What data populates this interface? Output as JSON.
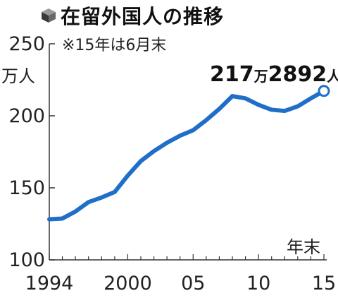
{
  "header": {
    "icon": "cube-icon",
    "title": "在留外国人の推移",
    "note": "※15年は6月末"
  },
  "chart_data": {
    "type": "line",
    "title": "在留外国人の推移",
    "ylabel": "万人",
    "xlabel": "年末",
    "ylim": [
      100,
      250
    ],
    "xlim": [
      1994,
      2015
    ],
    "yticks": [
      "250",
      "200",
      "150",
      "100"
    ],
    "ytick_values": [
      250,
      200,
      150,
      100
    ],
    "xticks": [
      "1994",
      "2000",
      "05",
      "10",
      "15"
    ],
    "xtick_values": [
      1994,
      2000,
      2005,
      2010,
      2015
    ],
    "series": [
      {
        "color": "#1f6fc8",
        "x": [
          1994,
          1995,
          1996,
          1997,
          1998,
          1999,
          2000,
          2001,
          2002,
          2003,
          2004,
          2005,
          2006,
          2007,
          2008,
          2009,
          2010,
          2011,
          2012,
          2013,
          2014,
          2015
        ],
        "y": [
          128.2,
          128.7,
          133.6,
          140.1,
          143.3,
          147.1,
          158.5,
          168.6,
          175.5,
          181.3,
          186.2,
          190.0,
          197.0,
          204.8,
          213.7,
          212.1,
          207.6,
          204.2,
          203.4,
          206.6,
          212.1,
          217.3
        ]
      }
    ],
    "annotations": [
      {
        "x": 2015,
        "y": 217.3,
        "big1": "217",
        "small1": "万",
        "big2": "2892",
        "small2": "人"
      }
    ],
    "grid": false
  }
}
